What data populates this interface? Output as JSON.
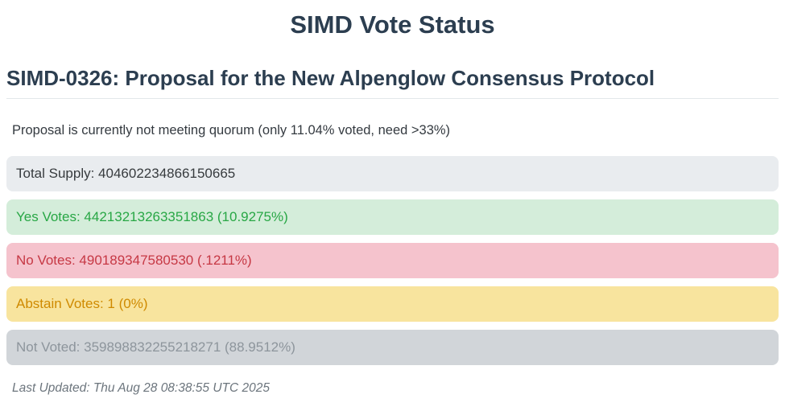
{
  "page": {
    "title": "SIMD Vote Status",
    "heading": "SIMD-0326: Proposal for the New Alpenglow Consensus Protocol",
    "quorum_status": "Proposal is currently not meeting quorum (only 11.04% voted, need >33%)",
    "quorum": {
      "voted_percent": "11.04%",
      "required_percent": ">33%"
    },
    "last_updated": "Last Updated: Thu Aug 28 08:38:55 UTC 2025"
  },
  "stats": {
    "total_supply": {
      "label": "Total Supply",
      "value": "404602234866150665",
      "text": "Total Supply: 404602234866150665",
      "bg": "#e9ecef",
      "fg": "#373b3e"
    },
    "yes": {
      "label": "Yes Votes",
      "value": "44213213263351863",
      "percent": "10.9275%",
      "text": "Yes Votes: 44213213263351863 (10.9275%)",
      "bg": "#d4edda",
      "fg": "#28a745"
    },
    "no": {
      "label": "No Votes",
      "value": "490189347580530",
      "percent": ".1211%",
      "text": "No Votes: 490189347580530 (.1211%)",
      "bg": "#f5c3cd",
      "fg": "#c63844"
    },
    "abstain": {
      "label": "Abstain Votes",
      "value": "1",
      "percent": "0%",
      "text": "Abstain Votes: 1 (0%)",
      "bg": "#f8e49e",
      "fg": "#cf8a00"
    },
    "not_voted": {
      "label": "Not Voted",
      "value": "359898832255218271",
      "percent": "88.9512%",
      "text": "Not Voted: 359898832255218271 (88.9512%)",
      "bg": "#d1d5d9",
      "fg": "#8d959c"
    }
  }
}
